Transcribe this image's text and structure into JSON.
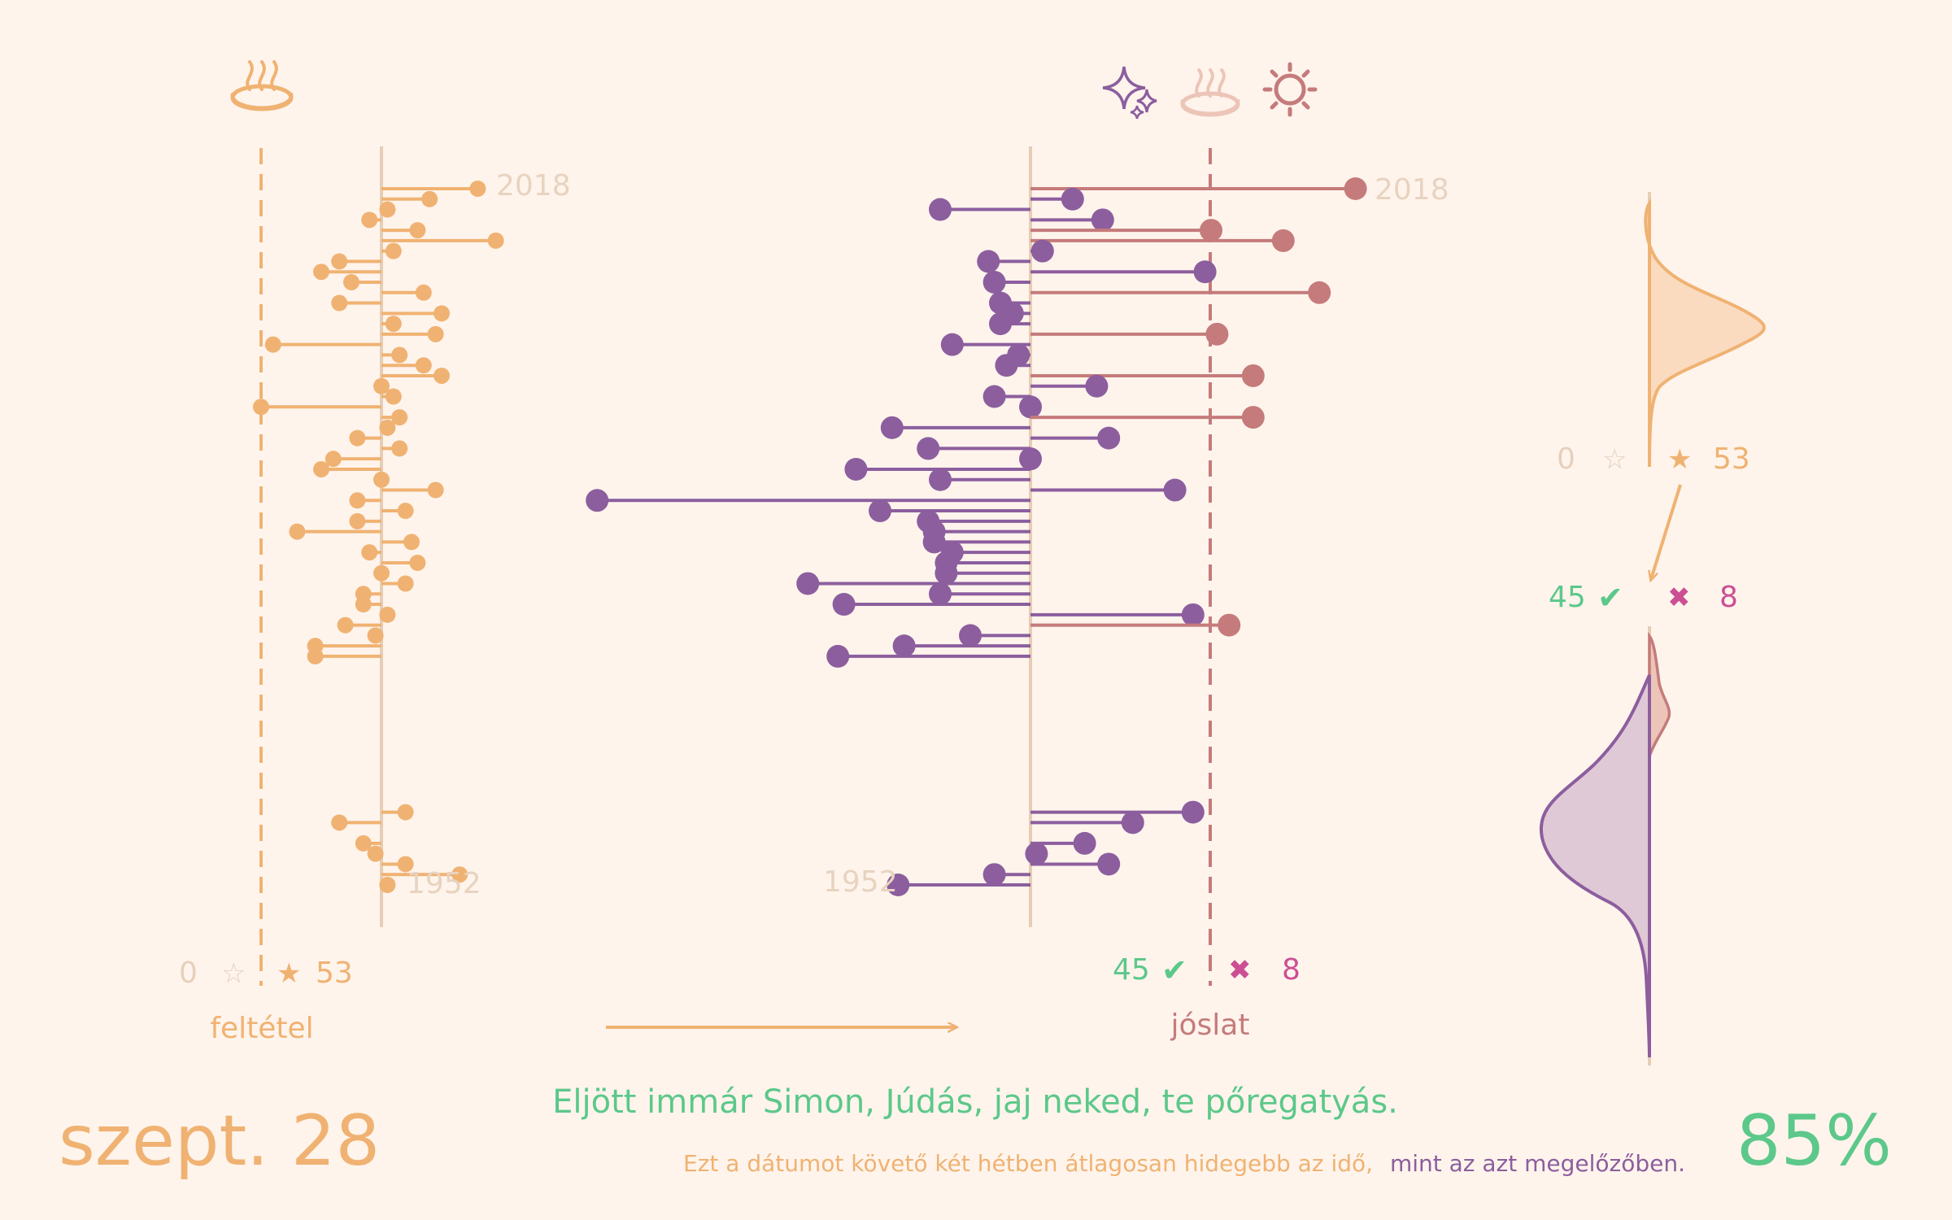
{
  "colors": {
    "background": "#fef4ec",
    "orange": "#f0b272",
    "orange_light": "#fadbbf",
    "purple": "#8c5e9e",
    "purple_light": "#e0c9d6",
    "rose": "#c57b7b",
    "rose_light": "#ecc5b8",
    "axis": "#e6cdb5",
    "year_text": "#e8d3c0",
    "green": "#5cc88a",
    "magenta": "#cc4f93",
    "grey_text": "#e6d0bc"
  },
  "icons": {
    "left_top": "hot-springs-icon",
    "right_cold": "sparkles-icon",
    "right_same": "hot-springs-icon",
    "right_warm": "sun-icon"
  },
  "left_panel": {
    "label": "feltétel",
    "year_top": "2018",
    "year_bottom": "1952",
    "zero": "0",
    "star_empty": "☆",
    "star_filled": "★",
    "count": "53"
  },
  "right_panel": {
    "label": "jóslat",
    "year_top": "2018",
    "year_bottom": "1952",
    "correct_count": "45",
    "check": "✔",
    "cross": "✖",
    "wrong_count": "8"
  },
  "side_panel": {
    "zero": "0",
    "star_empty": "☆",
    "star_filled": "★",
    "count": "53",
    "correct_count": "45",
    "check": "✔",
    "cross": "✖",
    "wrong_count": "8"
  },
  "footer": {
    "date": "szept. 28",
    "saying": "Eljött immár Simon, Júdás, jaj neked, te pőregatyás.",
    "explanation_part1": "Ezt a dátumot követő két hétben átlagosan hidegebb az idő,",
    "explanation_part2": "mint az azt megelőzőben.",
    "percentage": "85%"
  },
  "chart_data": [
    {
      "type": "lollipop",
      "name": "feltétel",
      "x_reference": 0,
      "x_threshold": -2,
      "year_range": [
        1952,
        2018
      ],
      "points": [
        {
          "year": 2018,
          "value": 1.6
        },
        {
          "year": 2017,
          "value": 0.8
        },
        {
          "year": 2016,
          "value": 0.1
        },
        {
          "year": 2015,
          "value": -0.2
        },
        {
          "year": 2014,
          "value": 0.6
        },
        {
          "year": 2013,
          "value": 1.9
        },
        {
          "year": 2012,
          "value": 0.2
        },
        {
          "year": 2011,
          "value": -0.7
        },
        {
          "year": 2010,
          "value": -1.0
        },
        {
          "year": 2009,
          "value": -0.5
        },
        {
          "year": 2008,
          "value": 0.7
        },
        {
          "year": 2007,
          "value": -0.7
        },
        {
          "year": 2006,
          "value": 1.0
        },
        {
          "year": 2005,
          "value": 0.2
        },
        {
          "year": 2004,
          "value": 0.9
        },
        {
          "year": 2003,
          "value": -1.8
        },
        {
          "year": 2002,
          "value": 0.3
        },
        {
          "year": 2001,
          "value": 0.7
        },
        {
          "year": 2000,
          "value": 1.0
        },
        {
          "year": 1999,
          "value": 0.0
        },
        {
          "year": 1998,
          "value": 0.2
        },
        {
          "year": 1997,
          "value": -2.0
        },
        {
          "year": 1996,
          "value": 0.3
        },
        {
          "year": 1995,
          "value": 0.1
        },
        {
          "year": 1994,
          "value": -0.4
        },
        {
          "year": 1993,
          "value": 0.3
        },
        {
          "year": 1992,
          "value": -0.8
        },
        {
          "year": 1991,
          "value": -1.0
        },
        {
          "year": 1990,
          "value": 0.0
        },
        {
          "year": 1989,
          "value": 0.9
        },
        {
          "year": 1988,
          "value": -0.4
        },
        {
          "year": 1987,
          "value": 0.4
        },
        {
          "year": 1986,
          "value": -0.4
        },
        {
          "year": 1985,
          "value": -1.4
        },
        {
          "year": 1984,
          "value": 0.5
        },
        {
          "year": 1983,
          "value": -0.2
        },
        {
          "year": 1982,
          "value": 0.6
        },
        {
          "year": 1981,
          "value": 0.0
        },
        {
          "year": 1980,
          "value": 0.4
        },
        {
          "year": 1979,
          "value": -0.3
        },
        {
          "year": 1978,
          "value": -0.3
        },
        {
          "year": 1977,
          "value": 0.1
        },
        {
          "year": 1976,
          "value": -0.6
        },
        {
          "year": 1975,
          "value": -0.1
        },
        {
          "year": 1974,
          "value": -1.1
        },
        {
          "year": 1973,
          "value": -1.1
        },
        {
          "year": 1958,
          "value": 0.4
        },
        {
          "year": 1957,
          "value": -0.7
        },
        {
          "year": 1955,
          "value": -0.3
        },
        {
          "year": 1954,
          "value": -0.1
        },
        {
          "year": 1953,
          "value": 0.4
        },
        {
          "year": 1952,
          "value": 1.3
        },
        {
          "year": 1951,
          "value": 0.1
        }
      ]
    },
    {
      "type": "lollipop",
      "name": "jóslat",
      "x_reference": 0,
      "x_threshold": 3,
      "year_range": [
        1952,
        2018
      ],
      "series": [
        {
          "name": "hidegebb",
          "color": "purple"
        },
        {
          "name": "melegebb",
          "color": "rose"
        }
      ],
      "points": [
        {
          "year": 2018,
          "value": 5.4,
          "series": "melegebb"
        },
        {
          "year": 2017,
          "value": 0.7,
          "series": "hidegebb"
        },
        {
          "year": 2016,
          "value": -1.5,
          "series": "hidegebb"
        },
        {
          "year": 2015,
          "value": 1.2,
          "series": "hidegebb"
        },
        {
          "year": 2014,
          "value": 3.0,
          "series": "melegebb"
        },
        {
          "year": 2013,
          "value": 4.2,
          "series": "melegebb"
        },
        {
          "year": 2012,
          "value": 0.2,
          "series": "hidegebb"
        },
        {
          "year": 2011,
          "value": -0.7,
          "series": "hidegebb"
        },
        {
          "year": 2010,
          "value": 2.9,
          "series": "hidegebb"
        },
        {
          "year": 2009,
          "value": -0.6,
          "series": "hidegebb"
        },
        {
          "year": 2008,
          "value": 4.8,
          "series": "melegebb"
        },
        {
          "year": 2007,
          "value": -0.5,
          "series": "hidegebb"
        },
        {
          "year": 2006,
          "value": -0.3,
          "series": "hidegebb"
        },
        {
          "year": 2005,
          "value": -0.5,
          "series": "hidegebb"
        },
        {
          "year": 2004,
          "value": 3.1,
          "series": "melegebb"
        },
        {
          "year": 2003,
          "value": -1.3,
          "series": "hidegebb"
        },
        {
          "year": 2002,
          "value": -0.2,
          "series": "hidegebb"
        },
        {
          "year": 2001,
          "value": -0.4,
          "series": "hidegebb"
        },
        {
          "year": 2000,
          "value": 3.7,
          "series": "melegebb"
        },
        {
          "year": 1999,
          "value": 1.1,
          "series": "hidegebb"
        },
        {
          "year": 1998,
          "value": -0.6,
          "series": "hidegebb"
        },
        {
          "year": 1997,
          "value": 0.0,
          "series": "hidegebb"
        },
        {
          "year": 1996,
          "value": 3.7,
          "series": "melegebb"
        },
        {
          "year": 1995,
          "value": -2.3,
          "series": "hidegebb"
        },
        {
          "year": 1994,
          "value": 1.3,
          "series": "hidegebb"
        },
        {
          "year": 1993,
          "value": -1.7,
          "series": "hidegebb"
        },
        {
          "year": 1992,
          "value": 0.0,
          "series": "hidegebb"
        },
        {
          "year": 1991,
          "value": -2.9,
          "series": "hidegebb"
        },
        {
          "year": 1990,
          "value": -1.5,
          "series": "hidegebb"
        },
        {
          "year": 1989,
          "value": 2.4,
          "series": "hidegebb"
        },
        {
          "year": 1988,
          "value": -7.2,
          "series": "hidegebb"
        },
        {
          "year": 1987,
          "value": -2.5,
          "series": "hidegebb"
        },
        {
          "year": 1986,
          "value": -1.7,
          "series": "hidegebb"
        },
        {
          "year": 1985,
          "value": -1.6,
          "series": "hidegebb"
        },
        {
          "year": 1984,
          "value": -1.6,
          "series": "hidegebb"
        },
        {
          "year": 1983,
          "value": -1.3,
          "series": "hidegebb"
        },
        {
          "year": 1982,
          "value": -1.4,
          "series": "hidegebb"
        },
        {
          "year": 1981,
          "value": -1.4,
          "series": "hidegebb"
        },
        {
          "year": 1980,
          "value": -3.7,
          "series": "hidegebb"
        },
        {
          "year": 1979,
          "value": -1.5,
          "series": "hidegebb"
        },
        {
          "year": 1978,
          "value": -3.1,
          "series": "hidegebb"
        },
        {
          "year": 1977,
          "value": 2.7,
          "series": "hidegebb"
        },
        {
          "year": 1976,
          "value": 3.3,
          "series": "melegebb"
        },
        {
          "year": 1975,
          "value": -1.0,
          "series": "hidegebb"
        },
        {
          "year": 1974,
          "value": -2.1,
          "series": "hidegebb"
        },
        {
          "year": 1973,
          "value": -3.2,
          "series": "hidegebb"
        },
        {
          "year": 1958,
          "value": 2.7,
          "series": "hidegebb"
        },
        {
          "year": 1957,
          "value": 1.7,
          "series": "hidegebb"
        },
        {
          "year": 1955,
          "value": 0.9,
          "series": "hidegebb"
        },
        {
          "year": 1954,
          "value": 0.1,
          "series": "hidegebb"
        },
        {
          "year": 1953,
          "value": 1.3,
          "series": "hidegebb"
        },
        {
          "year": 1952,
          "value": -0.6,
          "series": "hidegebb"
        },
        {
          "year": 1951,
          "value": -2.2,
          "series": "hidegebb"
        }
      ]
    }
  ]
}
